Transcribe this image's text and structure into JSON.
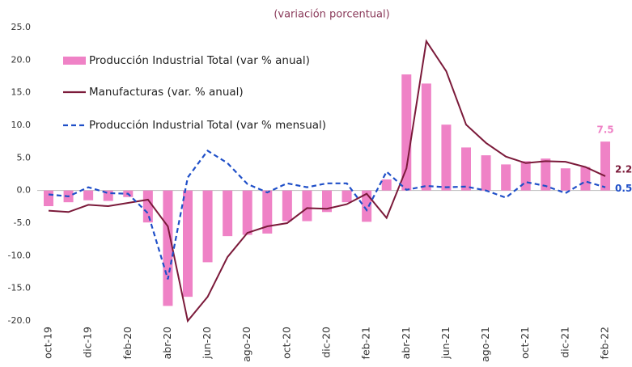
{
  "chart_data": {
    "type": "bar-line",
    "subtitle": "(variación porcentual)",
    "categories": [
      "oct-19",
      null,
      "dic-19",
      null,
      "feb-20",
      null,
      "abr-20",
      null,
      "jun-20",
      null,
      "ago-20",
      null,
      "oct-20",
      null,
      "dic-20",
      null,
      "feb-21",
      null,
      "abr-21",
      null,
      "jun-21",
      null,
      "ago-21",
      null,
      "oct-21",
      null,
      "dic-21",
      null,
      "feb-22"
    ],
    "ylim": [
      -20,
      25
    ],
    "yticks": [
      {
        "value": -20,
        "label": "-20.0"
      },
      {
        "value": -15,
        "label": "-15.0"
      },
      {
        "value": -10,
        "label": "-10.0"
      },
      {
        "value": -5,
        "label": "-5.0"
      },
      {
        "value": 0,
        "label": "0.0"
      },
      {
        "value": 5,
        "label": "5.0"
      },
      {
        "value": 10,
        "label": "10.0"
      },
      {
        "value": 15,
        "label": "15.0"
      },
      {
        "value": 20,
        "label": "20.0"
      },
      {
        "value": 25,
        "label": "25.0"
      }
    ],
    "series": [
      {
        "name": "Producción Industrial Total (var % anual)",
        "kind": "bar",
        "color": "#ef82c6",
        "values": [
          -2.4,
          -1.8,
          -1.5,
          -1.6,
          -1.0,
          -4.9,
          -17.7,
          -16.3,
          -11.0,
          -7.0,
          -6.8,
          -6.6,
          -4.7,
          -4.7,
          -3.3,
          -1.8,
          -4.8,
          1.7,
          17.8,
          16.4,
          10.1,
          6.6,
          5.4,
          4.0,
          4.5,
          4.9,
          3.4,
          3.6,
          7.5
        ]
      },
      {
        "name": "Manufacturas (var. % anual)",
        "kind": "line",
        "color": "#7b1a3a",
        "values": [
          -3.1,
          -3.3,
          -2.2,
          -2.4,
          -1.9,
          -1.4,
          -5.5,
          -20.0,
          -16.3,
          -10.2,
          -6.5,
          -5.5,
          -5.0,
          -2.7,
          -2.8,
          -2.1,
          -0.5,
          -4.2,
          3.4,
          22.9,
          18.3,
          10.1,
          7.3,
          5.2,
          4.2,
          4.5,
          4.4,
          3.6,
          2.2
        ]
      },
      {
        "name": "Producción Industrial Total (var % mensual)",
        "kind": "dashed",
        "color": "#1f4fc8",
        "values": [
          -0.6,
          -0.9,
          0.5,
          -0.4,
          -0.5,
          -3.5,
          -13.6,
          2.0,
          6.1,
          4.2,
          1.0,
          -0.3,
          1.1,
          0.5,
          1.1,
          1.1,
          -3.0,
          2.9,
          0.1,
          0.7,
          0.5,
          0.6,
          0.0,
          -1.1,
          1.3,
          0.7,
          -0.4,
          1.4,
          0.5
        ]
      }
    ]
  }
}
